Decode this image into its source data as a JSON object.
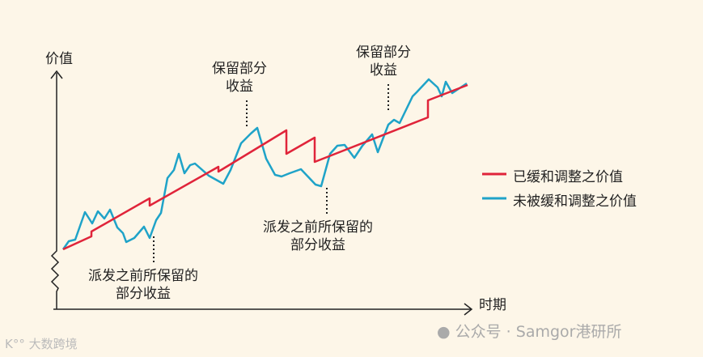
{
  "axes": {
    "y_label": "价值",
    "x_label": "时期"
  },
  "annotations": [
    {
      "text": "保留部分\n收益",
      "line1": "保留部分",
      "line2": "收益"
    },
    {
      "line1": "保留部分",
      "line2": "收益"
    },
    {
      "line1": "派发之前所保留的",
      "line2": "部分收益"
    },
    {
      "line1": "派发之前所保留的",
      "line2": "部分收益"
    }
  ],
  "legend": [
    {
      "label": "已缓和调整之价值",
      "color": "#e0243a"
    },
    {
      "label": "未被缓和调整之价值",
      "color": "#1fa3c8"
    }
  ],
  "watermarks": {
    "right": "公众号 · Samgor港研所",
    "left": "大数跨境"
  }
}
